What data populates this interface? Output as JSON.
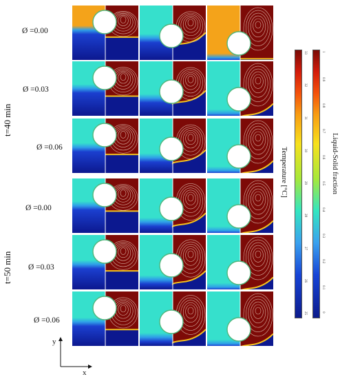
{
  "time_labels": [
    "t=40 min",
    "t=50 min"
  ],
  "rows": [
    {
      "phi": "Ø =0.00",
      "levels": [
        0.47,
        0.62,
        0.98
      ],
      "melt": [
        0.58,
        0.7,
        0.98
      ],
      "wave": [
        0,
        1,
        0
      ],
      "warm": true
    },
    {
      "phi": "Ø =0.03",
      "levels": [
        0.52,
        0.7,
        0.98
      ],
      "melt": [
        0.64,
        0.74,
        0.98
      ],
      "wave": [
        0,
        1,
        1
      ],
      "warm": false
    },
    {
      "phi": "Ø =0.06",
      "levels": [
        0.55,
        0.74,
        0.98
      ],
      "melt": [
        0.66,
        0.78,
        0.98
      ],
      "wave": [
        0,
        1,
        1
      ],
      "warm": false
    },
    {
      "phi": "Ø =0.00",
      "levels": [
        0.52,
        0.82,
        0.98
      ],
      "melt": [
        0.6,
        0.84,
        0.98
      ],
      "wave": [
        0,
        1,
        1
      ],
      "warm": false
    },
    {
      "phi": "Ø =0.03",
      "levels": [
        0.56,
        0.84,
        0.98
      ],
      "melt": [
        0.66,
        0.86,
        0.98
      ],
      "wave": [
        0,
        1,
        1
      ],
      "warm": false
    },
    {
      "phi": "Ø =0.06",
      "levels": [
        0.58,
        0.86,
        0.98
      ],
      "melt": [
        0.7,
        0.9,
        0.98
      ],
      "wave": [
        0,
        1,
        1
      ],
      "warm": false
    }
  ],
  "colorbars": {
    "temperature": {
      "title": "Temperature [°C]",
      "ticks": [
        "33",
        "32",
        "31",
        "30",
        "29",
        "28",
        "27",
        "26",
        "25"
      ]
    },
    "liquid_fraction": {
      "title": "Liquid-Solid fraction",
      "ticks": [
        "1",
        "0.9",
        "0.8",
        "0.7",
        "0.6",
        "0.5",
        "0.4",
        "0.3",
        "0.2",
        "0.1",
        "0"
      ]
    }
  },
  "axes": {
    "x_label": "x",
    "y_label": "y"
  }
}
